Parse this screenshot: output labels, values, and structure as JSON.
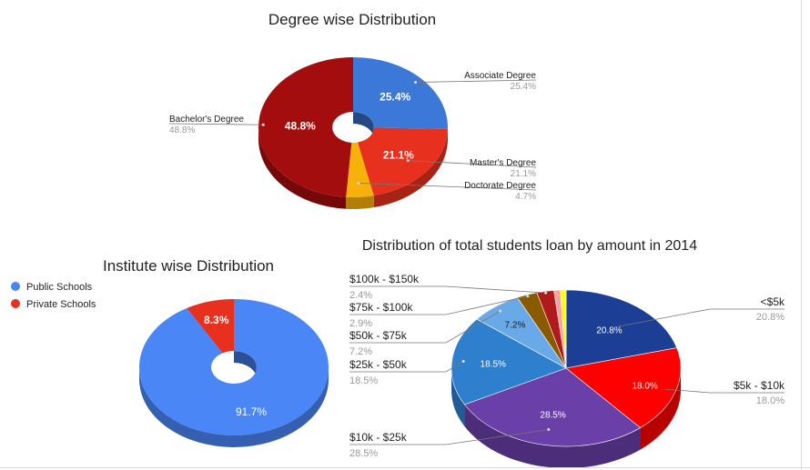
{
  "chart_data": [
    {
      "type": "pie",
      "title": "Degree wise Distribution",
      "donut": true,
      "three_d": true,
      "legend": "labels-outside",
      "categories": [
        "Associate Degree",
        "Master's Degree",
        "Doctorate Degree",
        "Bachelor's Degree"
      ],
      "values": [
        25.4,
        21.1,
        4.7,
        48.8
      ],
      "slice_labels": [
        "25.4%",
        "21.1%",
        "",
        "48.8%"
      ],
      "value_labels": [
        "25.4%",
        "21.1%",
        "4.7%",
        "48.8%"
      ],
      "colors": [
        "#3c78d8",
        "#e8301f",
        "#f6b10b",
        "#a30d0d"
      ]
    },
    {
      "type": "pie",
      "title": "Institute wise Distribution",
      "donut": true,
      "three_d": true,
      "legend": "top-left",
      "categories": [
        "Public Schools",
        "Private Schools"
      ],
      "values": [
        91.7,
        8.3
      ],
      "slice_labels": [
        "91.7%",
        "8.3%"
      ],
      "colors": [
        "#4a86f6",
        "#e8301f"
      ]
    },
    {
      "type": "pie",
      "title": "Distribution of total students loan by amount in 2014",
      "donut": false,
      "three_d": true,
      "legend": "labels-outside",
      "categories": [
        "<$5k",
        "$5k - $10k",
        "$10k - $25k",
        "$25k - $50k",
        "$50k - $75k",
        "$75k - $100k",
        "$100k - $150k",
        "",
        ""
      ],
      "values": [
        20.8,
        18.0,
        28.5,
        18.5,
        7.2,
        2.9,
        2.4,
        0.9,
        0.8
      ],
      "slice_labels": [
        "20.8%",
        "18.0%",
        "28.5%",
        "18.5%",
        "7.2%",
        "",
        "",
        "",
        ""
      ],
      "value_labels": [
        "20.8%",
        "18.0%",
        "28.5%",
        "18.5%",
        "7.2%",
        "2.9%",
        "2.4%",
        "",
        ""
      ],
      "colors": [
        "#1c3f95",
        "#fe0000",
        "#6a3fa8",
        "#2f7fcf",
        "#6aa9e8",
        "#8a5a00",
        "#b01a1a",
        "#f4a3a3",
        "#ffff00"
      ]
    }
  ]
}
